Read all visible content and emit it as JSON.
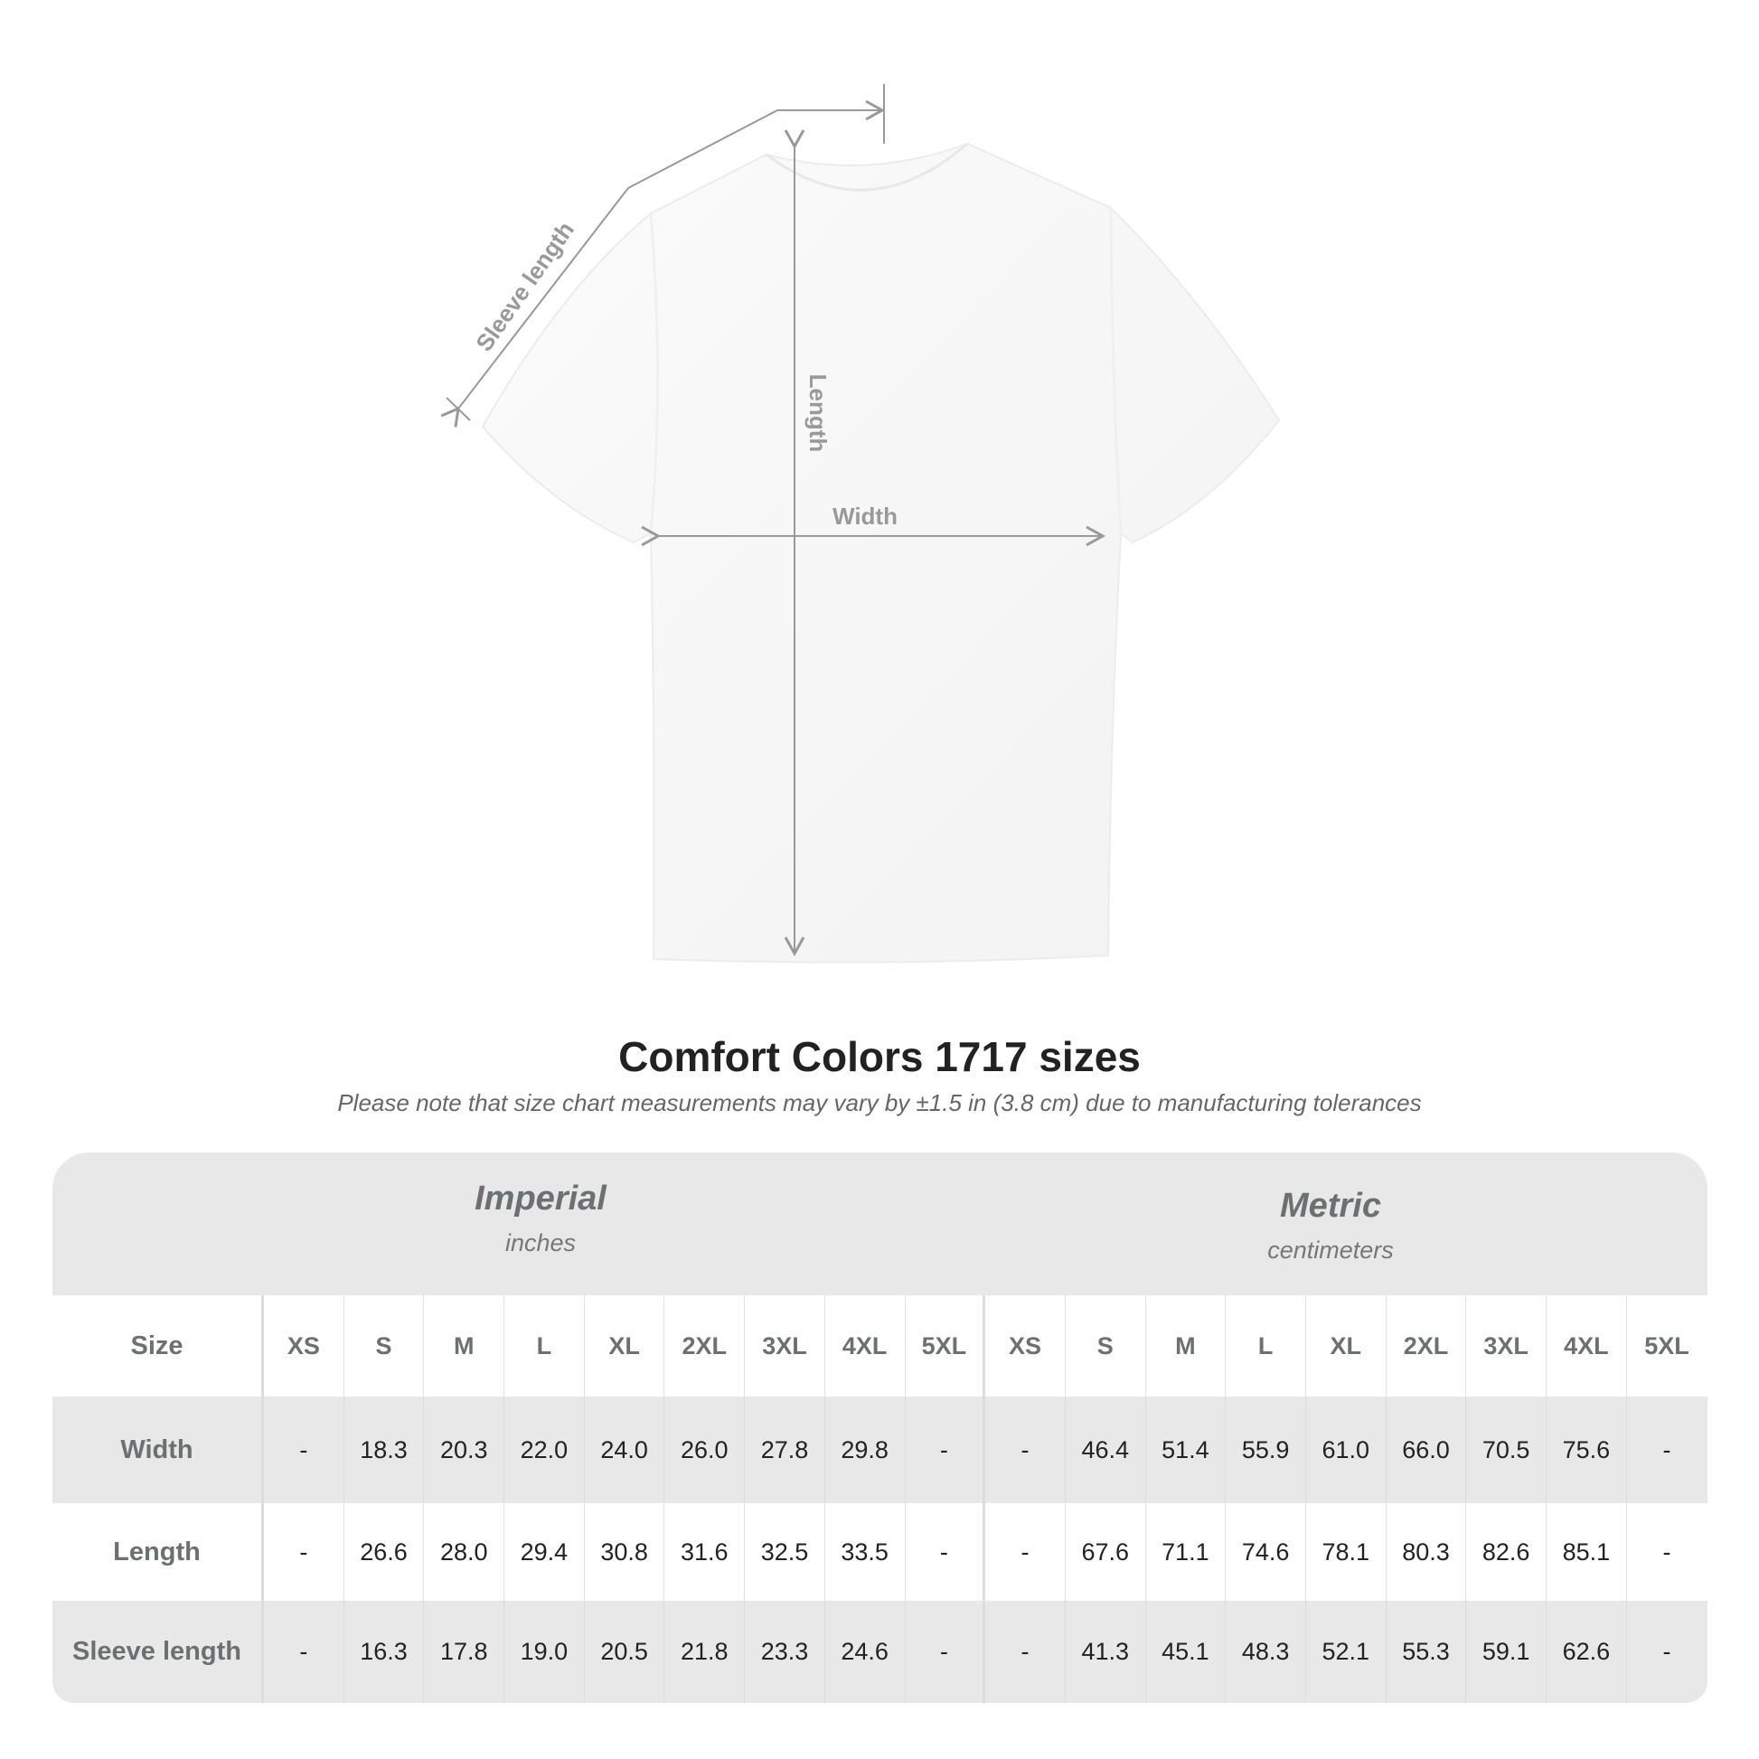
{
  "diagram": {
    "labels": {
      "sleeve": "Sleeve length",
      "length": "Length",
      "width": "Width"
    },
    "line_color": "#999999"
  },
  "title": "Comfort Colors 1717 sizes",
  "subtitle": "Please note that size chart measurements may vary by ±1.5 in (3.8 cm) due to manufacturing tolerances",
  "table": {
    "imperial": {
      "name": "Imperial",
      "unit": "inches"
    },
    "metric": {
      "name": "Metric",
      "unit": "centimeters"
    },
    "size_label": "Size",
    "sizes": [
      "XS",
      "S",
      "M",
      "L",
      "XL",
      "2XL",
      "3XL",
      "4XL",
      "5XL"
    ],
    "rows": [
      {
        "label": "Width",
        "imperial": [
          "-",
          "18.3",
          "20.3",
          "22.0",
          "24.0",
          "26.0",
          "27.8",
          "29.8",
          "-"
        ],
        "metric": [
          "-",
          "46.4",
          "51.4",
          "55.9",
          "61.0",
          "66.0",
          "70.5",
          "75.6",
          "-"
        ]
      },
      {
        "label": "Length",
        "imperial": [
          "-",
          "26.6",
          "28.0",
          "29.4",
          "30.8",
          "31.6",
          "32.5",
          "33.5",
          "-"
        ],
        "metric": [
          "-",
          "67.6",
          "71.1",
          "74.6",
          "78.1",
          "80.3",
          "82.6",
          "85.1",
          "-"
        ]
      },
      {
        "label": "Sleeve length",
        "imperial": [
          "-",
          "16.3",
          "17.8",
          "19.0",
          "20.5",
          "21.8",
          "23.3",
          "24.6",
          "-"
        ],
        "metric": [
          "-",
          "41.3",
          "45.1",
          "48.3",
          "52.1",
          "55.3",
          "59.1",
          "62.6",
          "-"
        ]
      }
    ],
    "band_color": "#e8e8e8"
  }
}
